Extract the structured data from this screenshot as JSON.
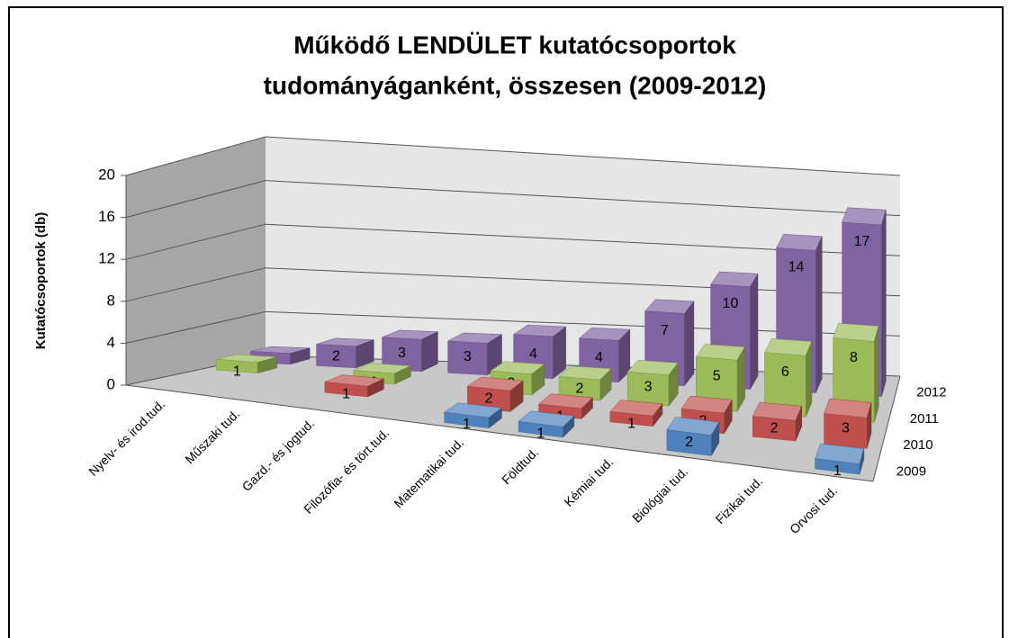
{
  "chart_data": {
    "type": "bar3d",
    "title": "Működő LENDÜLET kutatócsoportok",
    "subtitle": "tudományáganként, összesen (2009-2012)",
    "ylabel": "Kutatócsoportok (db)",
    "categories": [
      "Nyelv- és irod.tud.",
      "Műszaki tud.",
      "Gazd.- és jogtud.",
      "Filozófia- és tört.tud.",
      "Matematikai tud.",
      "Földtud.",
      "Kémiai tud.",
      "Biológiai tud.",
      "Fizikai tud.",
      "Orvosi tud."
    ],
    "series": [
      {
        "name": "2009",
        "color": "#4f81bd",
        "values": [
          null,
          null,
          null,
          null,
          1,
          1,
          null,
          2,
          null,
          1
        ]
      },
      {
        "name": "2010",
        "color": "#c0504d",
        "values": [
          null,
          null,
          1,
          null,
          2,
          1,
          1,
          2,
          2,
          3
        ]
      },
      {
        "name": "2011",
        "color": "#9bbb59",
        "values": [
          1,
          null,
          1,
          null,
          2,
          2,
          3,
          5,
          6,
          8
        ]
      },
      {
        "name": "2012",
        "color": "#8064a2",
        "values": [
          1,
          2,
          3,
          3,
          4,
          4,
          7,
          10,
          14,
          17
        ]
      }
    ],
    "ylim": [
      0,
      20
    ],
    "yticks": [
      0,
      4,
      8,
      12,
      16,
      20
    ],
    "grid": true
  }
}
